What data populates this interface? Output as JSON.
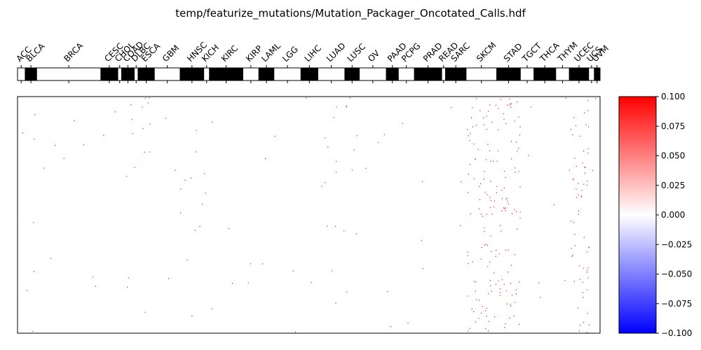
{
  "chart_data": [
    {
      "type": "heatmap",
      "title": "temp/featurize_mutations/Mutation_Packager_Oncotated_Calls.hdf",
      "category_bar": {
        "categories": [
          "ACC",
          "BLCA",
          "BRCA",
          "CESC",
          "CHOL",
          "COAD",
          "DLBC",
          "ESCA",
          "GBM",
          "HNSC",
          "KICH",
          "KIRC",
          "KIRP",
          "LAML",
          "LGG",
          "LIHC",
          "LUAD",
          "LUSC",
          "OV",
          "PAAD",
          "PCPG",
          "PRAD",
          "READ",
          "SARC",
          "SKCM",
          "STAD",
          "TGCT",
          "THCA",
          "THYM",
          "UCEC",
          "UCS",
          "UVM"
        ],
        "segment_fractions": [
          0.012,
          0.02,
          0.104,
          0.029,
          0.005,
          0.022,
          0.005,
          0.028,
          0.041,
          0.04,
          0.008,
          0.056,
          0.025,
          0.026,
          0.043,
          0.029,
          0.043,
          0.025,
          0.043,
          0.021,
          0.025,
          0.046,
          0.005,
          0.035,
          0.049,
          0.04,
          0.021,
          0.037,
          0.021,
          0.033,
          0.008,
          0.01
        ],
        "fill": [
          "white",
          "black",
          "white",
          "black",
          "white",
          "black",
          "white",
          "black",
          "white",
          "black",
          "white",
          "black",
          "white",
          "black",
          "white",
          "black",
          "white",
          "black",
          "white",
          "black",
          "white",
          "black",
          "white",
          "black",
          "white",
          "black",
          "white",
          "black",
          "white",
          "black",
          "white",
          "black"
        ]
      },
      "heatmap": {
        "description_values": "sparse binary mutation calls; 1 = mutated (red), 0 = not mutated (white)",
        "dense_columns": [
          "SKCM",
          "STAD",
          "UCEC"
        ],
        "moderate_columns": [
          "COAD",
          "LUAD",
          "LUSC",
          "BLCA",
          "HNSC",
          "ESCA"
        ],
        "colormap": "bwr",
        "vmin": -0.1,
        "vmax": 0.1
      },
      "colorbar": {
        "ticks": [
          "0.100",
          "0.075",
          "0.050",
          "0.025",
          "0.000",
          "−0.025",
          "−0.050",
          "−0.075",
          "−0.100"
        ],
        "tick_values": [
          0.1,
          0.075,
          0.05,
          0.025,
          0.0,
          -0.025,
          -0.05,
          -0.075,
          -0.1
        ]
      }
    }
  ],
  "colors": {
    "mutation": "#e00000",
    "cbar_top": "#ff0000",
    "cbar_mid": "#ffffff",
    "cbar_bottom": "#0000ff"
  }
}
